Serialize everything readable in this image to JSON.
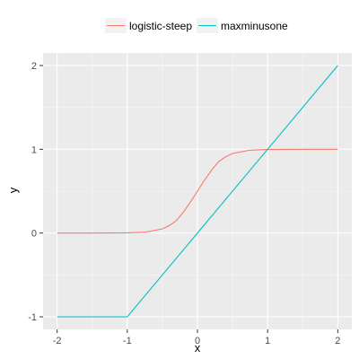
{
  "chart_data": {
    "type": "line",
    "title": "",
    "xlabel": "x",
    "ylabel": "y",
    "xlim": [
      -2,
      2
    ],
    "ylim": [
      -1,
      2
    ],
    "x_ticks": [
      -2,
      -1,
      0,
      1,
      2
    ],
    "y_ticks": [
      -1,
      0,
      1,
      2
    ],
    "x_tick_labels": [
      "-2",
      "-1",
      "0",
      "1",
      "2"
    ],
    "y_tick_labels": [
      "-1",
      "0",
      "1",
      "2"
    ],
    "grid": true,
    "legend_position": "top",
    "series": [
      {
        "name": "logistic-steep",
        "color": "#F8766D",
        "x": [
          -2,
          -1.5,
          -1,
          -0.75,
          -0.5,
          -0.4,
          -0.3,
          -0.2,
          -0.1,
          0,
          0.1,
          0.2,
          0.3,
          0.4,
          0.5,
          0.75,
          1,
          1.5,
          2
        ],
        "y": [
          0,
          0,
          0.002,
          0.01,
          0.05,
          0.09,
          0.15,
          0.25,
          0.37,
          0.5,
          0.63,
          0.75,
          0.85,
          0.91,
          0.95,
          0.99,
          0.998,
          1,
          1
        ]
      },
      {
        "name": "maxminusone",
        "color": "#00BFC4",
        "x": [
          -2,
          -1,
          2
        ],
        "y": [
          -1,
          -1,
          2
        ]
      }
    ]
  }
}
